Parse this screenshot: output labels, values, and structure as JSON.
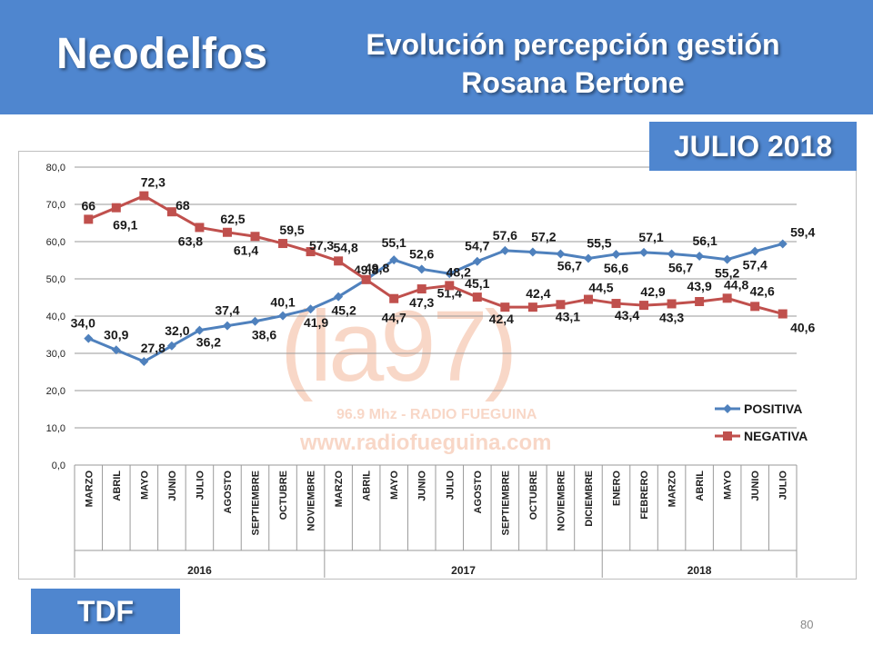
{
  "header": {
    "brand": "Neodelfos",
    "title_line1": "Evolución percepción gestión",
    "title_line2": "Rosana Bertone"
  },
  "badge_date": "JULIO 2018",
  "badge_region": "TDF",
  "page_number": "80",
  "watermark": {
    "logo": "(la97)",
    "frequency": "96.9 Mhz - RADIO FUEGUINA",
    "url": "www.radiofueguina.com"
  },
  "colors": {
    "header": "#4f86cf",
    "positiva": "#4f81bd",
    "negativa": "#c0504d"
  },
  "chart_data": {
    "type": "line",
    "categories": [
      "MARZO",
      "ABRIL",
      "MAYO",
      "JUNIO",
      "JULIO",
      "AGOSTO",
      "SEPTIEMBRE",
      "OCTUBRE",
      "NOVIEMBRE",
      "MARZO",
      "ABRIL",
      "MAYO",
      "JUNIO",
      "JULIO",
      "AGOSTO",
      "SEPTIEMBRE",
      "OCTUBRE",
      "NOVIEMBRE",
      "DICIEMBRE",
      "ENERO",
      "FEBRERO",
      "MARZO",
      "ABRIL",
      "MAYO",
      "JUNIO",
      "JULIO"
    ],
    "years": [
      {
        "label": "2016",
        "start": 0,
        "end": 8
      },
      {
        "label": "2017",
        "start": 9,
        "end": 18
      },
      {
        "label": "2018",
        "start": 19,
        "end": 25
      }
    ],
    "y_ticks": [
      "0,0",
      "10,0",
      "20,0",
      "30,0",
      "40,0",
      "50,0",
      "60,0",
      "70,0",
      "80,0"
    ],
    "ylim": [
      0,
      80
    ],
    "grid": true,
    "legend_position": "right",
    "series": [
      {
        "name": "POSITIVA",
        "color": "#4f81bd",
        "marker": "diamond",
        "values": [
          34.0,
          30.9,
          27.8,
          32.0,
          36.2,
          37.4,
          38.6,
          40.1,
          41.9,
          45.2,
          49.8,
          55.1,
          52.6,
          51.4,
          54.7,
          57.6,
          57.2,
          56.7,
          55.5,
          56.6,
          57.1,
          56.7,
          56.1,
          55.2,
          57.4,
          59.4
        ],
        "labels": [
          "34,0",
          "30,9",
          "27,8",
          "32,0",
          "36,2",
          "37,4",
          "38,6",
          "40,1",
          "41,9",
          "45,2",
          "49,8",
          "55,1",
          "52,6",
          "51,4",
          "54,7",
          "57,6",
          "57,2",
          "56,7",
          "55,5",
          "56,6",
          "57,1",
          "56,7",
          "56,1",
          "55,2",
          "57,4",
          "59,4"
        ]
      },
      {
        "name": "NEGATIVA",
        "color": "#c0504d",
        "marker": "square",
        "values": [
          66,
          69.1,
          72.3,
          68,
          63.8,
          62.5,
          61.4,
          59.5,
          57.3,
          54.8,
          49.8,
          44.7,
          47.3,
          48.2,
          45.1,
          42.4,
          42.4,
          43.1,
          44.5,
          43.4,
          42.9,
          43.3,
          43.9,
          44.8,
          42.6,
          40.6
        ],
        "labels": [
          "66",
          "69,1",
          "72,3",
          "68",
          "63,8",
          "62,5",
          "61,4",
          "59,5",
          "57,3",
          "54,8",
          "49,8",
          "44,7",
          "47,3",
          "48,2",
          "45,1",
          "42,4",
          "42,4",
          "43,1",
          "44,5",
          "43,4",
          "42,9",
          "43,3",
          "43,9",
          "44,8",
          "42,6",
          "40,6"
        ]
      }
    ]
  }
}
